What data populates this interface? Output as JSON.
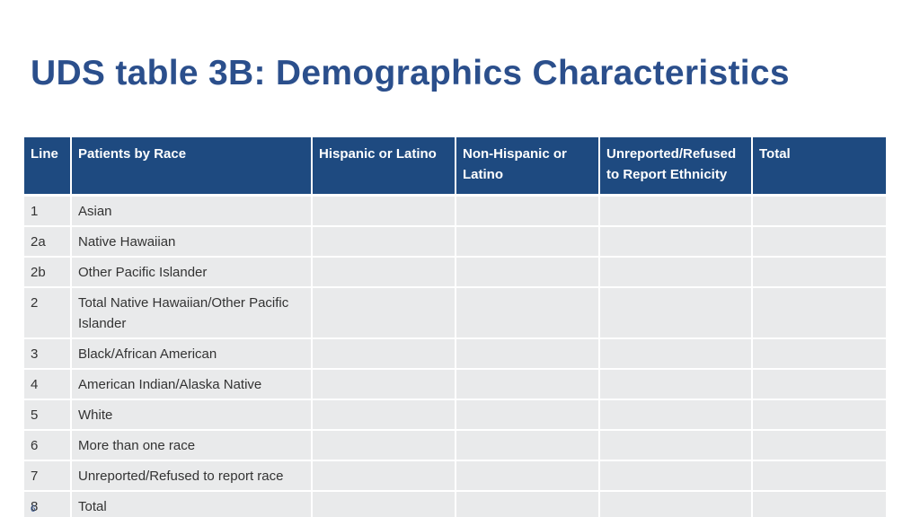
{
  "slide": {
    "title": "UDS table 3B: Demographics Characteristics",
    "page_number": "6"
  },
  "table": {
    "headers": [
      "Line",
      "Patients by Race",
      "Hispanic or Latino",
      "Non-Hispanic or Latino",
      "Unreported/Refused to Report Ethnicity",
      "Total"
    ],
    "rows": [
      {
        "line": "1",
        "race": "Asian"
      },
      {
        "line": "2a",
        "race": "Native Hawaiian"
      },
      {
        "line": "2b",
        "race": "Other Pacific Islander"
      },
      {
        "line": "2",
        "race": "Total Native Hawaiian/Other Pacific Islander"
      },
      {
        "line": "3",
        "race": "Black/African American"
      },
      {
        "line": "4",
        "race": "American Indian/Alaska Native"
      },
      {
        "line": "5",
        "race": "White"
      },
      {
        "line": "6",
        "race": "More than one race"
      },
      {
        "line": "7",
        "race": "Unreported/Refused to report race"
      },
      {
        "line": "8",
        "race": "Total"
      }
    ]
  },
  "colors": {
    "title": "#2b4f8c",
    "header_bg": "#1e4a80",
    "row_bg": "#e9eaeb"
  }
}
